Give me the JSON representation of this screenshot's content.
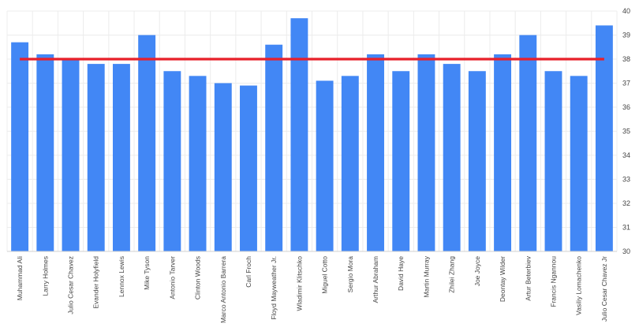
{
  "chart_data": {
    "type": "bar",
    "title": "",
    "xlabel": "",
    "ylabel": "",
    "ylim": [
      30,
      40
    ],
    "yticks": [
      30,
      31,
      32,
      33,
      34,
      35,
      36,
      37,
      38,
      39,
      40
    ],
    "y_axis_position": "right",
    "grid": true,
    "legend": "none",
    "categories": [
      "Muhammad Ali",
      "Larry Holmes",
      "Julio Cesar Chavez",
      "Evander Holyfield",
      "Lennox Lewis",
      "Mike Tyson",
      "Antonio Tarver",
      "Clinton Woods",
      "Marco Antonio Barrera",
      "Carl Froch",
      "Floyd Mayweather Jr.",
      "Wladimir Klitschko",
      "Miguel Cotto",
      "Sergio Mora",
      "Arthur Abraham",
      "David Haye",
      "Martin Murray",
      "Zhilei Zhang",
      "Joe Joyce",
      "Deontay Wilder",
      "Artur Beterbiev",
      "Francis Ngannou",
      "Vasiliy Lomachenko",
      "Julio Cesar Chavez Jr"
    ],
    "series": [
      {
        "values": [
          38.7,
          38.2,
          38.0,
          37.8,
          37.8,
          39.0,
          37.5,
          37.3,
          37.0,
          36.9,
          38.6,
          39.7,
          37.1,
          37.3,
          38.2,
          37.5,
          38.2,
          37.8,
          37.5,
          38.2,
          39.0,
          37.5,
          37.3,
          39.4
        ]
      }
    ],
    "reference_line": {
      "value": 38.0,
      "color": "#e8202a"
    },
    "colors": {
      "bar": "#4287f5",
      "reference_line": "#e8202a"
    }
  }
}
